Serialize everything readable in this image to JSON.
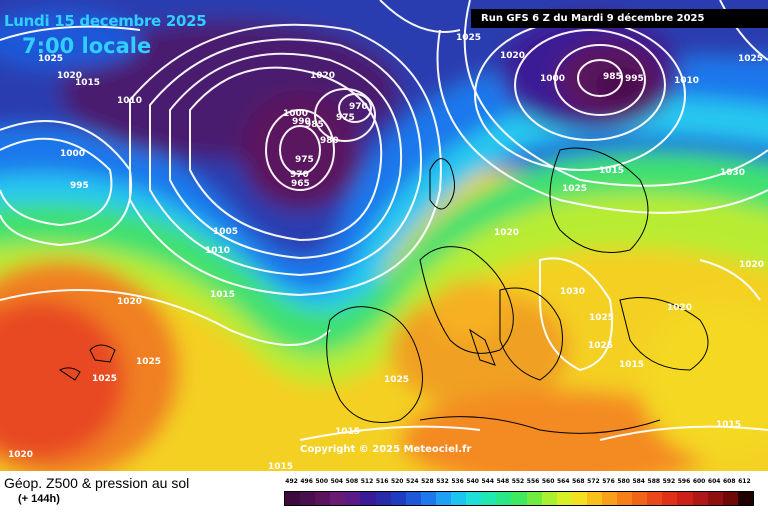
{
  "header": {
    "date": "Lundi 15 decembre 2025",
    "time": "7:00 locale",
    "run": "Run GFS 6 Z du Mardi 9 décembre 2025"
  },
  "copyright": "Copyright © 2025 Meteociel.fr",
  "legend": {
    "title": "Géop. Z500 & pression au sol",
    "subtitle": "(+ 144h)",
    "scale": [
      {
        "label": "492",
        "color": "#3c0a3c"
      },
      {
        "label": "496",
        "color": "#4a0f4e"
      },
      {
        "label": "500",
        "color": "#5a145e"
      },
      {
        "label": "504",
        "color": "#6a1a72"
      },
      {
        "label": "508",
        "color": "#5a1a88"
      },
      {
        "label": "512",
        "color": "#3a1a96"
      },
      {
        "label": "516",
        "color": "#2a2aa8"
      },
      {
        "label": "520",
        "color": "#1e3cc0"
      },
      {
        "label": "524",
        "color": "#1e58d8"
      },
      {
        "label": "528",
        "color": "#1e78ec"
      },
      {
        "label": "532",
        "color": "#1ea0f4"
      },
      {
        "label": "536",
        "color": "#1ec4f0"
      },
      {
        "label": "540",
        "color": "#1ee0d8"
      },
      {
        "label": "544",
        "color": "#20e8b0"
      },
      {
        "label": "548",
        "color": "#28e888"
      },
      {
        "label": "552",
        "color": "#40e860"
      },
      {
        "label": "556",
        "color": "#70ec40"
      },
      {
        "label": "560",
        "color": "#a8f030"
      },
      {
        "label": "564",
        "color": "#d8f028"
      },
      {
        "label": "568",
        "color": "#f4e020"
      },
      {
        "label": "572",
        "color": "#f8c018"
      },
      {
        "label": "576",
        "color": "#f8a018"
      },
      {
        "label": "580",
        "color": "#f68018"
      },
      {
        "label": "584",
        "color": "#f06418"
      },
      {
        "label": "588",
        "color": "#ea4818"
      },
      {
        "label": "592",
        "color": "#e03018"
      },
      {
        "label": "596",
        "color": "#cc2018"
      },
      {
        "label": "600",
        "color": "#b01818"
      },
      {
        "label": "604",
        "color": "#901010"
      },
      {
        "label": "608",
        "color": "#700808"
      },
      {
        "label": "612",
        "color": "#200000"
      }
    ]
  },
  "isobars": [
    {
      "text": "1025",
      "x": "456",
      "y": "34"
    },
    {
      "text": "1020",
      "x": "500",
      "y": "52"
    },
    {
      "text": "1025",
      "x": "738",
      "y": "55"
    },
    {
      "text": "1020",
      "x": "57",
      "y": "72"
    },
    {
      "text": "1015",
      "x": "75",
      "y": "79"
    },
    {
      "text": "1025",
      "x": "38",
      "y": "55"
    },
    {
      "text": "1020",
      "x": "310",
      "y": "72"
    },
    {
      "text": "1010",
      "x": "117",
      "y": "97"
    },
    {
      "text": "1000",
      "x": "283",
      "y": "110"
    },
    {
      "text": "990",
      "x": "292",
      "y": "118"
    },
    {
      "text": "985",
      "x": "305",
      "y": "121"
    },
    {
      "text": "975",
      "x": "336",
      "y": "114"
    },
    {
      "text": "970",
      "x": "349",
      "y": "103"
    },
    {
      "text": "980",
      "x": "320",
      "y": "137"
    },
    {
      "text": "975",
      "x": "295",
      "y": "156"
    },
    {
      "text": "970",
      "x": "290",
      "y": "171"
    },
    {
      "text": "965",
      "x": "291",
      "y": "180"
    },
    {
      "text": "1000",
      "x": "60",
      "y": "150"
    },
    {
      "text": "995",
      "x": "70",
      "y": "182"
    },
    {
      "text": "1005",
      "x": "213",
      "y": "228"
    },
    {
      "text": "1010",
      "x": "205",
      "y": "247"
    },
    {
      "text": "1015",
      "x": "210",
      "y": "291"
    },
    {
      "text": "1020",
      "x": "117",
      "y": "298"
    },
    {
      "text": "1025",
      "x": "136",
      "y": "358"
    },
    {
      "text": "1025",
      "x": "92",
      "y": "375"
    },
    {
      "text": "1020",
      "x": "8",
      "y": "451"
    },
    {
      "text": "1000",
      "x": "540",
      "y": "75"
    },
    {
      "text": "985",
      "x": "603",
      "y": "73"
    },
    {
      "text": "995",
      "x": "625",
      "y": "75"
    },
    {
      "text": "1010",
      "x": "674",
      "y": "77"
    },
    {
      "text": "1015",
      "x": "599",
      "y": "167"
    },
    {
      "text": "1025",
      "x": "562",
      "y": "185"
    },
    {
      "text": "1030",
      "x": "720",
      "y": "169"
    },
    {
      "text": "1020",
      "x": "494",
      "y": "229"
    },
    {
      "text": "1030",
      "x": "560",
      "y": "288"
    },
    {
      "text": "1025",
      "x": "589",
      "y": "314"
    },
    {
      "text": "1025",
      "x": "588",
      "y": "342"
    },
    {
      "text": "1020",
      "x": "667",
      "y": "304"
    },
    {
      "text": "1020",
      "x": "739",
      "y": "261"
    },
    {
      "text": "1015",
      "x": "619",
      "y": "361"
    },
    {
      "text": "1025",
      "x": "384",
      "y": "376"
    },
    {
      "text": "1015",
      "x": "335",
      "y": "428"
    },
    {
      "text": "1015",
      "x": "716",
      "y": "421"
    },
    {
      "text": "1015",
      "x": "268",
      "y": "463"
    }
  ]
}
